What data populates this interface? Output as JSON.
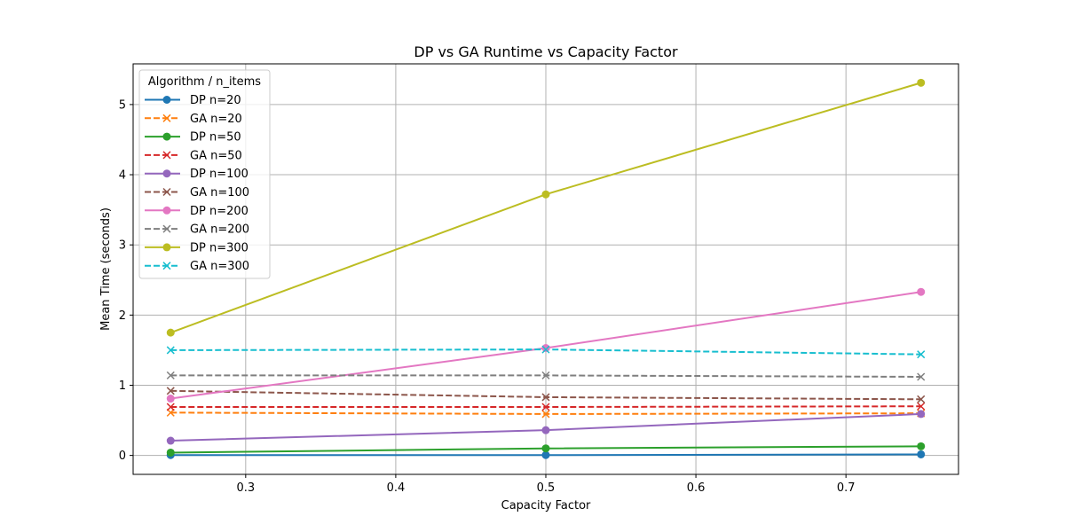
{
  "chart_data": {
    "type": "line",
    "title": "DP vs GA Runtime vs Capacity Factor",
    "xlabel": "Capacity Factor",
    "ylabel": "Mean Time (seconds)",
    "xlim": [
      0.225,
      0.775
    ],
    "ylim": [
      -0.27,
      5.58
    ],
    "xticks": [
      0.3,
      0.4,
      0.5,
      0.6,
      0.7
    ],
    "yticks": [
      0,
      1,
      2,
      3,
      4,
      5
    ],
    "grid": true,
    "x": [
      0.25,
      0.5,
      0.75
    ],
    "legend": {
      "title": "Algorithm / n_items",
      "position": "top-left"
    },
    "series": [
      {
        "name": "DP n=20",
        "values": [
          0.005,
          0.005,
          0.015
        ],
        "color": "#1f77b4",
        "dash": false,
        "marker": "circle"
      },
      {
        "name": "GA n=20",
        "values": [
          0.61,
          0.59,
          0.6
        ],
        "color": "#ff7f0e",
        "dash": true,
        "marker": "x"
      },
      {
        "name": "DP n=50",
        "values": [
          0.04,
          0.1,
          0.13
        ],
        "color": "#2ca02c",
        "dash": false,
        "marker": "circle"
      },
      {
        "name": "GA n=50",
        "values": [
          0.69,
          0.69,
          0.7
        ],
        "color": "#d62728",
        "dash": true,
        "marker": "x"
      },
      {
        "name": "DP n=100",
        "values": [
          0.21,
          0.36,
          0.59
        ],
        "color": "#9467bd",
        "dash": false,
        "marker": "circle"
      },
      {
        "name": "GA n=100",
        "values": [
          0.92,
          0.83,
          0.8
        ],
        "color": "#8c564b",
        "dash": true,
        "marker": "x"
      },
      {
        "name": "DP n=200",
        "values": [
          0.81,
          1.53,
          2.33
        ],
        "color": "#e377c2",
        "dash": false,
        "marker": "circle"
      },
      {
        "name": "GA n=200",
        "values": [
          1.14,
          1.14,
          1.12
        ],
        "color": "#7f7f7f",
        "dash": true,
        "marker": "x"
      },
      {
        "name": "DP n=300",
        "values": [
          1.75,
          3.72,
          5.31
        ],
        "color": "#bcbd22",
        "dash": false,
        "marker": "circle"
      },
      {
        "name": "GA n=300",
        "values": [
          1.5,
          1.51,
          1.44
        ],
        "color": "#17becf",
        "dash": true,
        "marker": "x"
      }
    ]
  }
}
